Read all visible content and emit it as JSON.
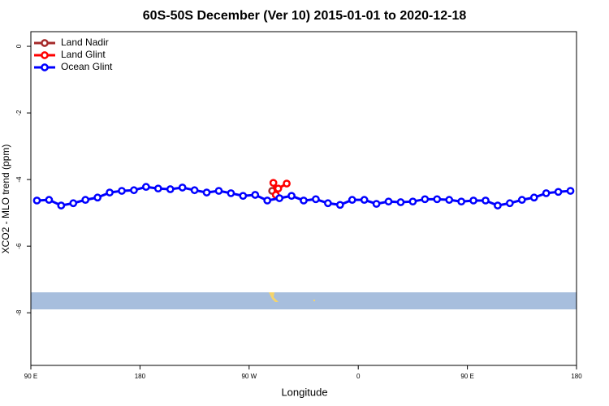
{
  "chart_data": {
    "type": "line",
    "title": "60S-50S December (Ver 10)   2015-01-01 to 2020-12-18",
    "x_label": "Longitude",
    "y_label": "XCO2 - MLO trend (ppm)",
    "xlim": [
      90,
      540
    ],
    "ylim": [
      -9.58,
      0.44
    ],
    "xticks": [
      {
        "value": 90,
        "label": "90 E"
      },
      {
        "value": 180,
        "label": "180"
      },
      {
        "value": 270,
        "label": "90 W"
      },
      {
        "value": 360,
        "label": "0"
      },
      {
        "value": 450,
        "label": "90 E"
      },
      {
        "value": 540,
        "label": "180"
      }
    ],
    "yticks": [
      0,
      -2,
      -4,
      -6,
      -8
    ],
    "legend": "top-left",
    "series": [
      {
        "name": "Land Nadir",
        "color": "#a52a2a",
        "x": [
          289
        ],
        "values": [
          -4.34
        ]
      },
      {
        "name": "Land Glint",
        "color": "#ff0000",
        "x": [
          290,
          292,
          294,
          301
        ],
        "values": [
          -4.1,
          -4.46,
          -4.27,
          -4.12
        ]
      },
      {
        "name": "Ocean Glint",
        "color": "#0000ff",
        "x": [
          95,
          105,
          115,
          125,
          135,
          145,
          155,
          165,
          175,
          185,
          195,
          205,
          215,
          225,
          235,
          245,
          255,
          265,
          275,
          285,
          295,
          305,
          315,
          325,
          335,
          345,
          355,
          365,
          375,
          385,
          395,
          405,
          415,
          425,
          435,
          445,
          455,
          465,
          475,
          485,
          495,
          505,
          515,
          525,
          535
        ],
        "values": [
          -4.63,
          -4.61,
          -4.78,
          -4.71,
          -4.61,
          -4.54,
          -4.39,
          -4.34,
          -4.32,
          -4.22,
          -4.27,
          -4.29,
          -4.24,
          -4.32,
          -4.39,
          -4.34,
          -4.41,
          -4.49,
          -4.46,
          -4.63,
          -4.56,
          -4.49,
          -4.63,
          -4.59,
          -4.71,
          -4.76,
          -4.61,
          -4.61,
          -4.73,
          -4.66,
          -4.68,
          -4.66,
          -4.59,
          -4.59,
          -4.61,
          -4.66,
          -4.63,
          -4.63,
          -4.78,
          -4.71,
          -4.61,
          -4.54,
          -4.41,
          -4.37,
          -4.34
        ]
      }
    ]
  }
}
